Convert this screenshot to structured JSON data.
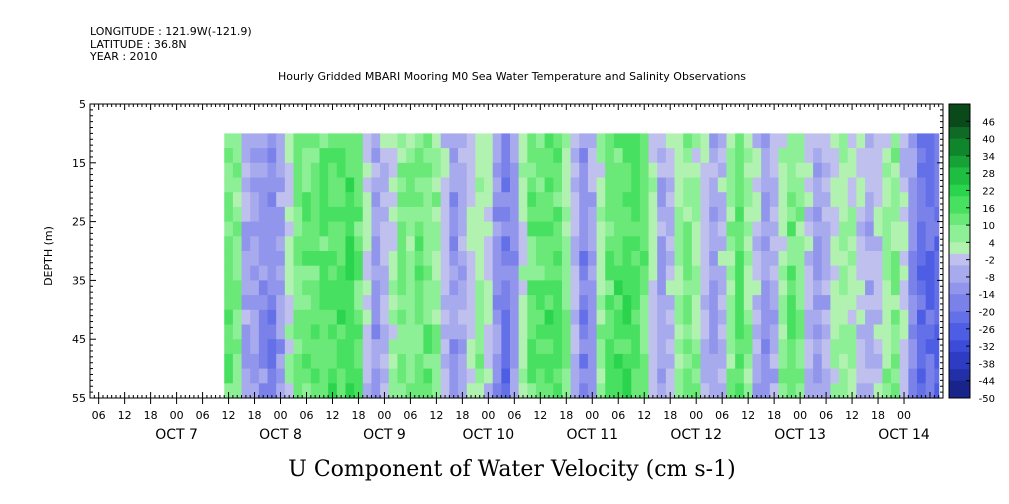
{
  "header": {
    "longitude": "LONGITUDE : 121.9W(-121.9)",
    "latitude": "LATITUDE : 36.8N",
    "year": "YEAR : 2010"
  },
  "chart_data": {
    "type": "heatmap",
    "title": "Hourly Gridded MBARI Mooring M0 Sea Water Temperature and Salinity Observations",
    "xlabel": "U Component of Water Velocity (cm s-1)",
    "ylabel": "DEPTH (m)",
    "ylim": [
      5,
      55
    ],
    "y_ticks": [
      5,
      15,
      25,
      35,
      45,
      55
    ],
    "x_range_hours": [
      "2010-10-06T04:00",
      "2010-10-14T09:00"
    ],
    "x_data_range": [
      "2010-10-07T11:00",
      "2010-10-14T08:00"
    ],
    "x_tick_labels": [
      "06",
      "12",
      "18",
      "00",
      "06",
      "12",
      "18",
      "00",
      "06",
      "12",
      "18",
      "00",
      "06",
      "12",
      "18",
      "00",
      "06",
      "12",
      "18",
      "00",
      "06",
      "12",
      "18",
      "00",
      "06",
      "12",
      "18",
      "00",
      "06",
      "12",
      "18",
      "00"
    ],
    "date_labels": [
      "OCT  7",
      "OCT  8",
      "OCT  9",
      "OCT 10",
      "OCT 11",
      "OCT 12",
      "OCT 13",
      "OCT 14"
    ],
    "data_depth_range": [
      10,
      55
    ],
    "colorbar": {
      "labels": [
        "46",
        "40",
        "34",
        "28",
        "22",
        "16",
        "10",
        "4",
        "-2",
        "-8",
        "-14",
        "-20",
        "-26",
        "-32",
        "-38",
        "-44",
        "-50"
      ],
      "range": [
        -50,
        52
      ],
      "palette_positive": [
        "#0a4a1a",
        "#0e6a24",
        "#10862c",
        "#16a236",
        "#1ebe40",
        "#2ad44c",
        "#48e060",
        "#6ae878",
        "#8ef096",
        "#b2f2b0"
      ],
      "palette_negative": [
        "#c0c0ef",
        "#a8aaee",
        "#9196ec",
        "#7a82ea",
        "#6470e8",
        "#4e5ee4",
        "#3c4cd8",
        "#2e3cc4",
        "#2230a8",
        "#18248a",
        "#101a6c",
        "#0a1050"
      ]
    },
    "dominant_pattern": [
      {
        "start": "2010-10-07T11:00",
        "sign": "positive",
        "value": 12
      },
      {
        "start": "2010-10-07T15:00",
        "sign": "negative",
        "value": -8
      },
      {
        "start": "2010-10-07T20:00",
        "sign": "negative",
        "value": -16
      },
      {
        "start": "2010-10-08T02:00",
        "sign": "positive",
        "value": 10
      },
      {
        "start": "2010-10-08T08:00",
        "sign": "positive",
        "value": 14
      },
      {
        "start": "2010-10-08T14:00",
        "sign": "positive",
        "value": 18
      },
      {
        "start": "2010-10-08T20:00",
        "sign": "negative",
        "value": -10
      },
      {
        "start": "2010-10-09T02:00",
        "sign": "positive",
        "value": 8
      },
      {
        "start": "2010-10-09T08:00",
        "sign": "positive",
        "value": 12
      },
      {
        "start": "2010-10-09T14:00",
        "sign": "negative",
        "value": -12
      },
      {
        "start": "2010-10-09T20:00",
        "sign": "positive",
        "value": 6
      },
      {
        "start": "2010-10-10T02:00",
        "sign": "negative",
        "value": -20
      },
      {
        "start": "2010-10-10T08:00",
        "sign": "positive",
        "value": 12
      },
      {
        "start": "2010-10-10T14:00",
        "sign": "positive",
        "value": 16
      },
      {
        "start": "2010-10-10T20:00",
        "sign": "negative",
        "value": -16
      },
      {
        "start": "2010-10-11T02:00",
        "sign": "positive",
        "value": 14
      },
      {
        "start": "2010-10-11T08:00",
        "sign": "positive",
        "value": 18
      },
      {
        "start": "2010-10-11T14:00",
        "sign": "negative",
        "value": -8
      },
      {
        "start": "2010-10-11T20:00",
        "sign": "positive",
        "value": 10
      },
      {
        "start": "2010-10-12T02:00",
        "sign": "negative",
        "value": -10
      },
      {
        "start": "2010-10-12T08:00",
        "sign": "positive",
        "value": 14
      },
      {
        "start": "2010-10-12T14:00",
        "sign": "negative",
        "value": -12
      },
      {
        "start": "2010-10-12T20:00",
        "sign": "positive",
        "value": 12
      },
      {
        "start": "2010-10-13T02:00",
        "sign": "negative",
        "value": -10
      },
      {
        "start": "2010-10-13T08:00",
        "sign": "positive",
        "value": 6
      },
      {
        "start": "2010-10-13T14:00",
        "sign": "negative",
        "value": -6
      },
      {
        "start": "2010-10-13T20:00",
        "sign": "positive",
        "value": 8
      },
      {
        "start": "2010-10-14T02:00",
        "sign": "negative",
        "value": -22
      }
    ]
  }
}
